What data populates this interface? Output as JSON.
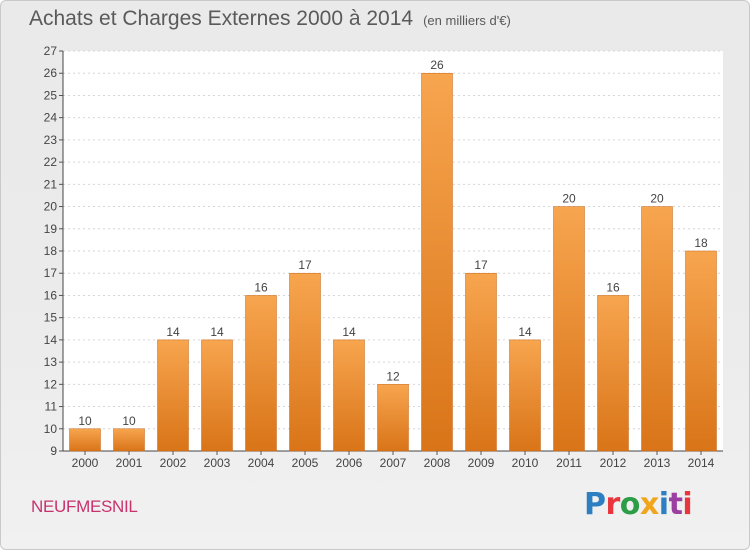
{
  "header": {
    "title": "Achats et Charges Externes 2000 à 2014",
    "subtitle": "(en milliers d'€)"
  },
  "footer": {
    "place": "NEUFMESNIL",
    "logo_text": "Proxiti",
    "logo_colors": [
      "#2d7fc1",
      "#e8363c",
      "#2d9e48",
      "#f1a51d",
      "#2d7fc1",
      "#9b3fa0",
      "#e8363c"
    ]
  },
  "chart_data": {
    "type": "bar",
    "title": "Achats et Charges Externes 2000 à 2014",
    "subtitle": "(en milliers d'€)",
    "xlabel": "",
    "ylabel": "",
    "categories": [
      "2000",
      "2001",
      "2002",
      "2003",
      "2004",
      "2005",
      "2006",
      "2007",
      "2008",
      "2009",
      "2010",
      "2011",
      "2012",
      "2013",
      "2014"
    ],
    "values": [
      10,
      10,
      14,
      14,
      16,
      17,
      14,
      12,
      26,
      17,
      14,
      20,
      16,
      20,
      18
    ],
    "ylim": [
      9,
      27
    ],
    "yticks": [
      9,
      10,
      11,
      12,
      13,
      14,
      15,
      16,
      17,
      18,
      19,
      20,
      21,
      22,
      23,
      24,
      25,
      26,
      27
    ],
    "grid": true,
    "bar_color": "#f0922f",
    "legend": "none"
  }
}
